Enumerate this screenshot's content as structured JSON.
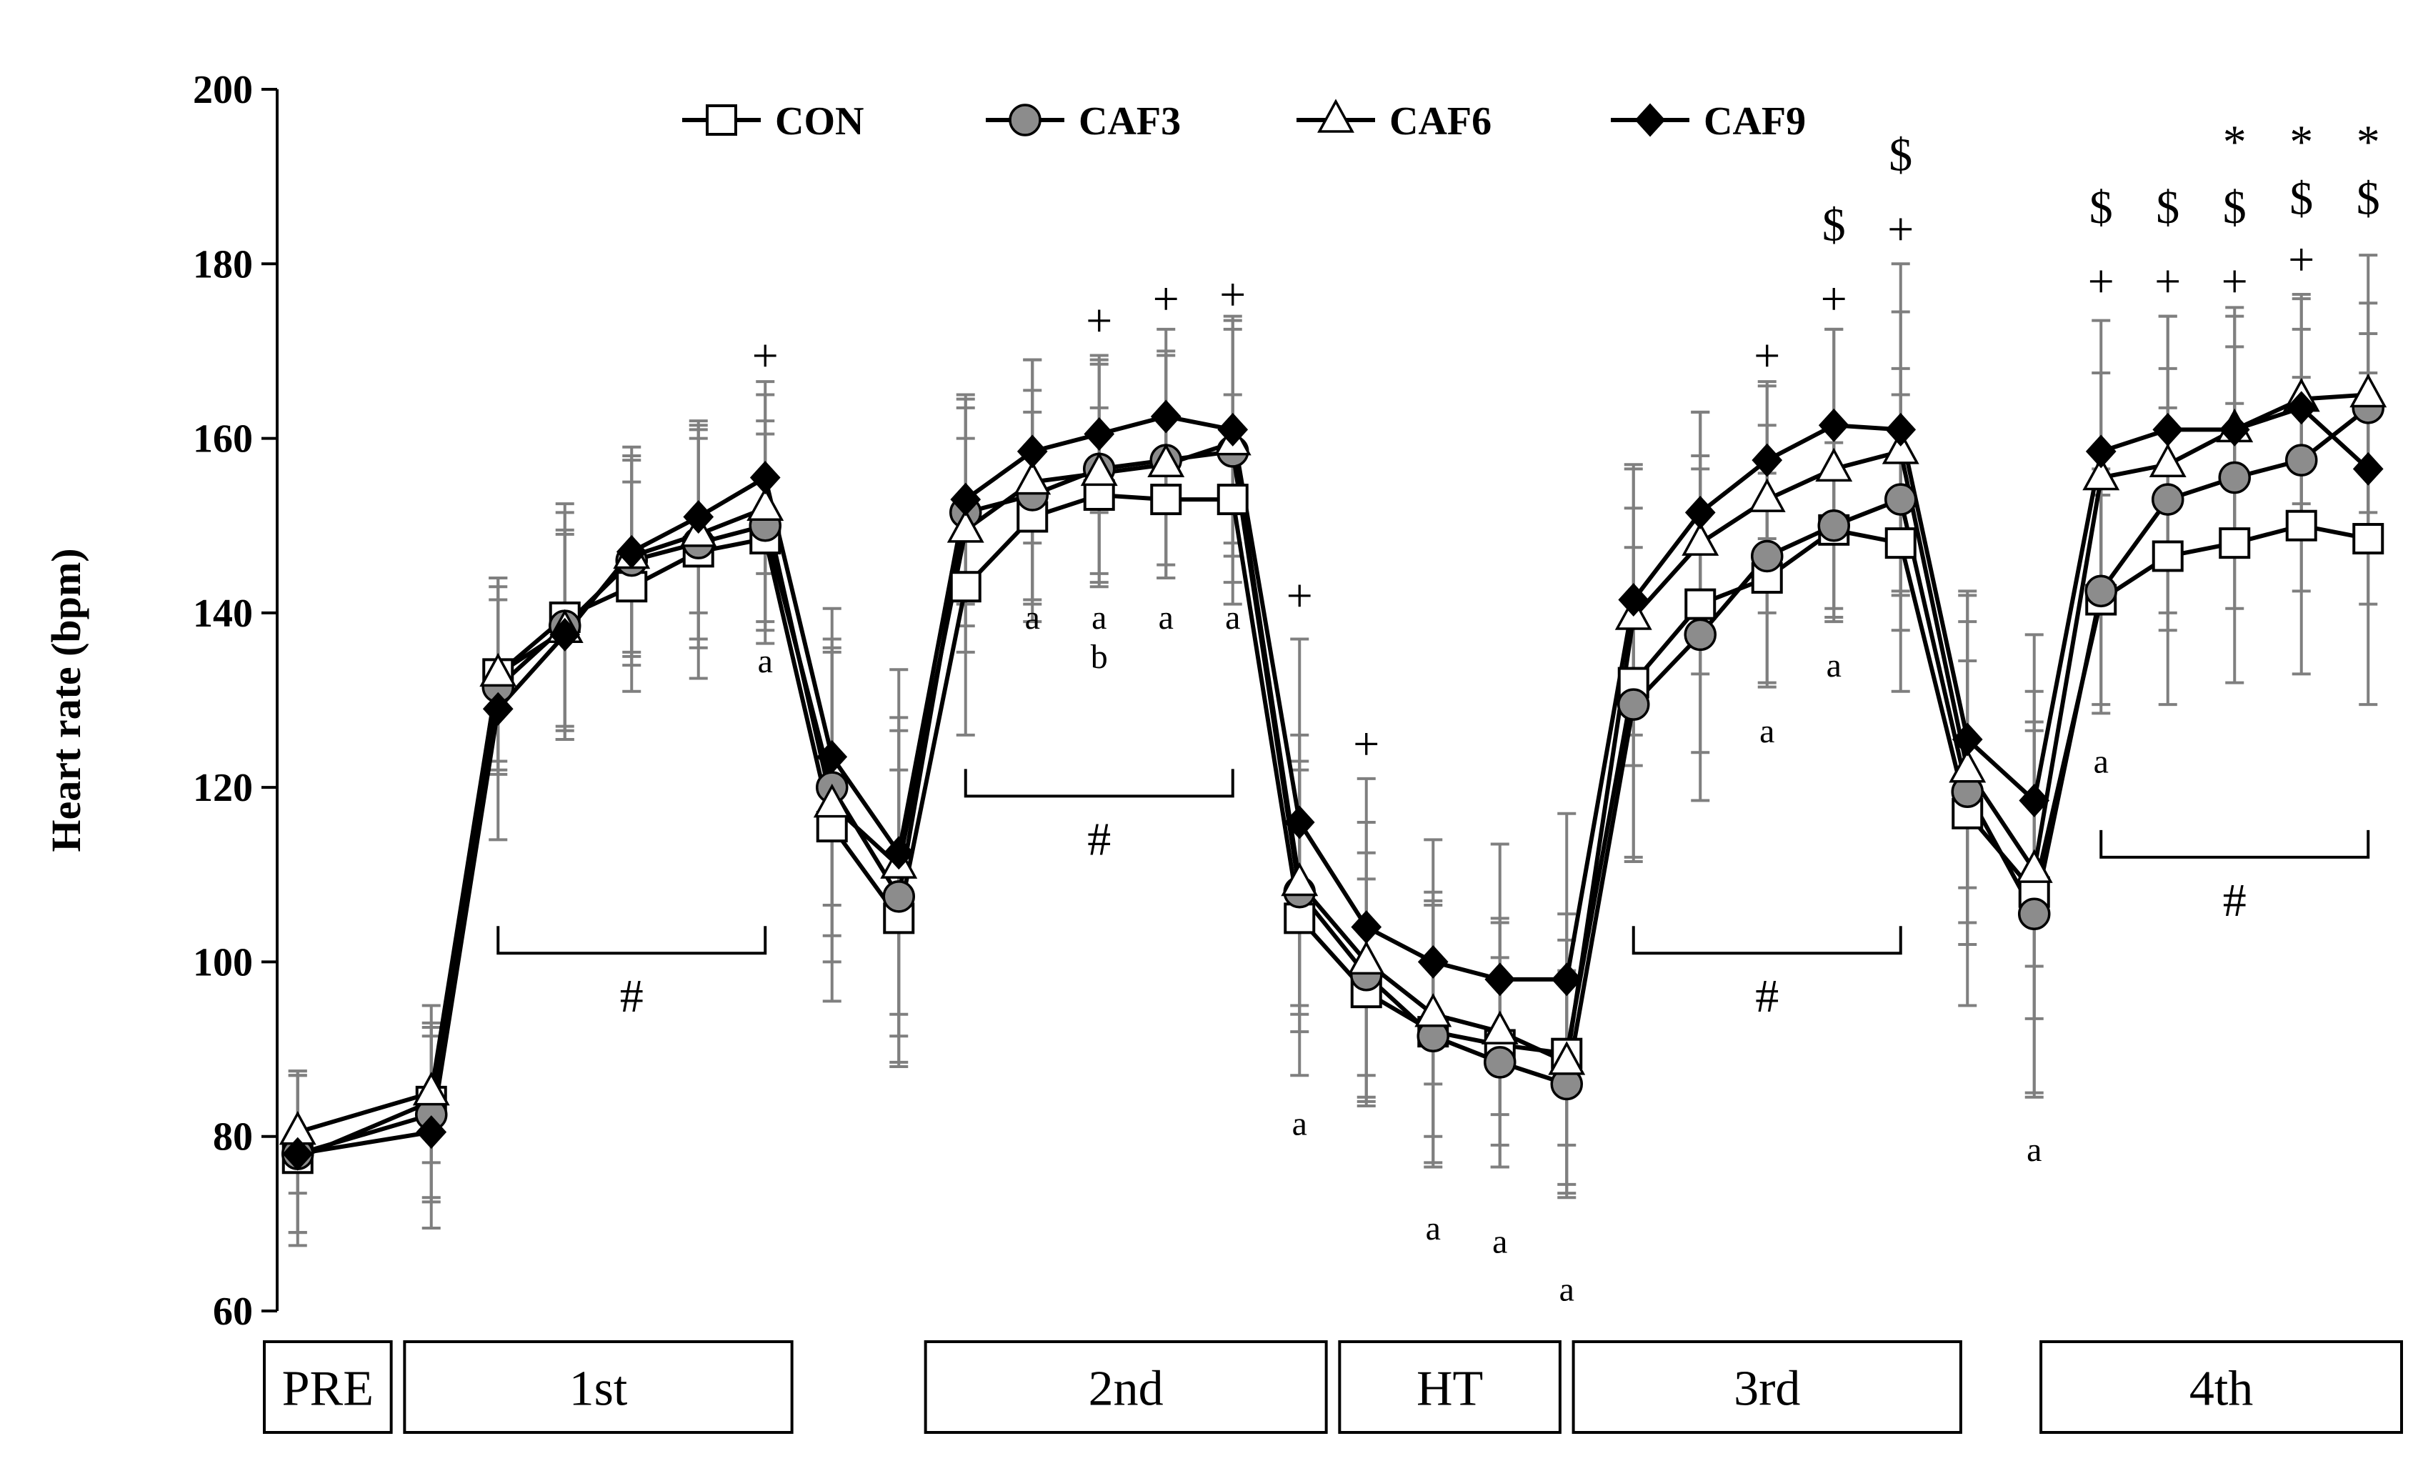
{
  "chart_data": {
    "type": "line",
    "title": "",
    "xlabel": "",
    "ylabel": "Heart rate (bpm)",
    "ylim": [
      60,
      200
    ],
    "yticks": [
      60,
      80,
      100,
      120,
      140,
      160,
      180,
      200
    ],
    "grid": false,
    "legend_position": "top",
    "phases": [
      "PRE",
      "1st",
      "2nd",
      "HT",
      "3rd",
      "4th"
    ],
    "series": [
      {
        "name": "CON",
        "marker": "square-open",
        "values": [
          {
            "x": 0.5,
            "y": 77.5,
            "err": 10
          },
          {
            "x": 2.5,
            "y": 84,
            "err": 11
          },
          {
            "x": 3.5,
            "y": 133,
            "err": 11
          },
          {
            "x": 4.5,
            "y": 139.5,
            "err": 13
          },
          {
            "x": 5.5,
            "y": 143,
            "err": 12
          },
          {
            "x": 6.5,
            "y": 147,
            "err": 14.5
          },
          {
            "x": 7.5,
            "y": 148.5,
            "err": 12
          },
          {
            "x": 8.5,
            "y": 115.5,
            "err": 20
          },
          {
            "x": 9.5,
            "y": 105,
            "err": 17
          },
          {
            "x": 10.5,
            "y": 143,
            "err": 17
          },
          {
            "x": 11.5,
            "y": 151,
            "err": 12
          },
          {
            "x": 12.5,
            "y": 153.5,
            "err": 10
          },
          {
            "x": 13.5,
            "y": 153,
            "err": 9
          },
          {
            "x": 14.5,
            "y": 153,
            "err": 12
          },
          {
            "x": 15.5,
            "y": 105,
            "err": 18
          },
          {
            "x": 16.5,
            "y": 96.5,
            "err": 13
          },
          {
            "x": 17.5,
            "y": 92,
            "err": 15
          },
          {
            "x": 18.5,
            "y": 90.5,
            "err": 14
          },
          {
            "x": 19.5,
            "y": 89.5,
            "err": 16
          },
          {
            "x": 20.5,
            "y": 132,
            "err": 20
          },
          {
            "x": 21.5,
            "y": 141,
            "err": 17
          },
          {
            "x": 22.5,
            "y": 144,
            "err": 12
          },
          {
            "x": 23.5,
            "y": 149.5,
            "err": 10
          },
          {
            "x": 24.5,
            "y": 148,
            "err": 17
          },
          {
            "x": 25.5,
            "y": 117,
            "err": 22
          },
          {
            "x": 26.5,
            "y": 108,
            "err": 23
          },
          {
            "x": 27.5,
            "y": 141.5,
            "err": 12
          },
          {
            "x": 28.5,
            "y": 146.5,
            "err": 17
          },
          {
            "x": 29.5,
            "y": 148,
            "err": 16
          },
          {
            "x": 30.5,
            "y": 150,
            "err": 17
          },
          {
            "x": 31.5,
            "y": 148.5,
            "err": 19
          }
        ]
      },
      {
        "name": "CAF3",
        "marker": "circle-gray",
        "values": [
          {
            "x": 0.5,
            "y": 78,
            "err": 9
          },
          {
            "x": 2.5,
            "y": 82.5,
            "err": 10
          },
          {
            "x": 3.5,
            "y": 131.5,
            "err": 10
          },
          {
            "x": 4.5,
            "y": 138.5,
            "err": 13
          },
          {
            "x": 5.5,
            "y": 146,
            "err": 12
          },
          {
            "x": 6.5,
            "y": 148,
            "err": 12
          },
          {
            "x": 7.5,
            "y": 150,
            "err": 12
          },
          {
            "x": 8.5,
            "y": 120,
            "err": 17
          },
          {
            "x": 9.5,
            "y": 107.5,
            "err": 19
          },
          {
            "x": 10.5,
            "y": 151.5,
            "err": 13
          },
          {
            "x": 11.5,
            "y": 153.5,
            "err": 12
          },
          {
            "x": 12.5,
            "y": 156.5,
            "err": 12
          },
          {
            "x": 13.5,
            "y": 157.5,
            "err": 12
          },
          {
            "x": 14.5,
            "y": 158.5,
            "err": 15
          },
          {
            "x": 15.5,
            "y": 108,
            "err": 14
          },
          {
            "x": 16.5,
            "y": 98.5,
            "err": 14
          },
          {
            "x": 17.5,
            "y": 91.5,
            "err": 15
          },
          {
            "x": 18.5,
            "y": 88.5,
            "err": 12
          },
          {
            "x": 19.5,
            "y": 86,
            "err": 13
          },
          {
            "x": 20.5,
            "y": 129.5,
            "err": 18
          },
          {
            "x": 21.5,
            "y": 137.5,
            "err": 19
          },
          {
            "x": 22.5,
            "y": 146.5,
            "err": 15
          },
          {
            "x": 23.5,
            "y": 150,
            "err": 11
          },
          {
            "x": 24.5,
            "y": 153,
            "err": 15
          },
          {
            "x": 25.5,
            "y": 119.5,
            "err": 15
          },
          {
            "x": 26.5,
            "y": 105.5,
            "err": 21
          },
          {
            "x": 27.5,
            "y": 142.5,
            "err": 14
          },
          {
            "x": 28.5,
            "y": 153,
            "err": 15
          },
          {
            "x": 29.5,
            "y": 155.5,
            "err": 15
          },
          {
            "x": 30.5,
            "y": 157.5,
            "err": 15
          },
          {
            "x": 31.5,
            "y": 163.5,
            "err": 12
          }
        ]
      },
      {
        "name": "CAF6",
        "marker": "triangle-open",
        "values": [
          {
            "x": 0.5,
            "y": 80.5,
            "err": 7
          },
          {
            "x": 2.5,
            "y": 85,
            "err": 8
          },
          {
            "x": 3.5,
            "y": 133,
            "err": 10
          },
          {
            "x": 4.5,
            "y": 138,
            "err": 11
          },
          {
            "x": 5.5,
            "y": 146.5,
            "err": 11
          },
          {
            "x": 6.5,
            "y": 149,
            "err": 12
          },
          {
            "x": 7.5,
            "y": 152,
            "err": 13
          },
          {
            "x": 8.5,
            "y": 118,
            "err": 18
          },
          {
            "x": 9.5,
            "y": 111,
            "err": 17
          },
          {
            "x": 10.5,
            "y": 149.5,
            "err": 14
          },
          {
            "x": 11.5,
            "y": 155,
            "err": 14
          },
          {
            "x": 12.5,
            "y": 156,
            "err": 13
          },
          {
            "x": 13.5,
            "y": 157,
            "err": 13
          },
          {
            "x": 14.5,
            "y": 159.5,
            "err": 13
          },
          {
            "x": 15.5,
            "y": 109,
            "err": 17
          },
          {
            "x": 16.5,
            "y": 100,
            "err": 16
          },
          {
            "x": 17.5,
            "y": 94,
            "err": 14
          },
          {
            "x": 18.5,
            "y": 92,
            "err": 13
          },
          {
            "x": 19.5,
            "y": 88.5,
            "err": 14
          },
          {
            "x": 20.5,
            "y": 139.5,
            "err": 17
          },
          {
            "x": 21.5,
            "y": 148,
            "err": 15
          },
          {
            "x": 22.5,
            "y": 153,
            "err": 13
          },
          {
            "x": 23.5,
            "y": 156.5,
            "err": 16
          },
          {
            "x": 24.5,
            "y": 158.5,
            "err": 16
          },
          {
            "x": 25.5,
            "y": 122,
            "err": 20
          },
          {
            "x": 26.5,
            "y": 110.5,
            "err": 17
          },
          {
            "x": 27.5,
            "y": 155.5,
            "err": 12
          },
          {
            "x": 28.5,
            "y": 157,
            "err": 17
          },
          {
            "x": 29.5,
            "y": 161,
            "err": 14
          },
          {
            "x": 30.5,
            "y": 164.5,
            "err": 12
          },
          {
            "x": 31.5,
            "y": 165,
            "err": 16
          }
        ]
      },
      {
        "name": "CAF9",
        "marker": "diamond-filled",
        "values": [
          {
            "x": 0.5,
            "y": 78,
            "err": 9
          },
          {
            "x": 2.5,
            "y": 80.5,
            "err": 11
          },
          {
            "x": 3.5,
            "y": 129,
            "err": 15
          },
          {
            "x": 4.5,
            "y": 137.5,
            "err": 12
          },
          {
            "x": 5.5,
            "y": 147,
            "err": 12
          },
          {
            "x": 6.5,
            "y": 151,
            "err": 11
          },
          {
            "x": 7.5,
            "y": 155.5,
            "err": 11
          },
          {
            "x": 8.5,
            "y": 123.5,
            "err": 17
          },
          {
            "x": 9.5,
            "y": 112.5,
            "err": 21
          },
          {
            "x": 10.5,
            "y": 153,
            "err": 12
          },
          {
            "x": 11.5,
            "y": 158.5,
            "err": 10.5
          },
          {
            "x": 12.5,
            "y": 160.5,
            "err": 9
          },
          {
            "x": 13.5,
            "y": 162.5,
            "err": 10
          },
          {
            "x": 14.5,
            "y": 161,
            "err": 13
          },
          {
            "x": 15.5,
            "y": 116,
            "err": 21
          },
          {
            "x": 16.5,
            "y": 104,
            "err": 17
          },
          {
            "x": 17.5,
            "y": 100,
            "err": 14
          },
          {
            "x": 18.5,
            "y": 98,
            "err": 15.5
          },
          {
            "x": 19.5,
            "y": 98,
            "err": 19
          },
          {
            "x": 20.5,
            "y": 141.5,
            "err": 15.5
          },
          {
            "x": 21.5,
            "y": 151.5,
            "err": 11.5
          },
          {
            "x": 22.5,
            "y": 157.5,
            "err": 9
          },
          {
            "x": 23.5,
            "y": 161.5,
            "err": 11
          },
          {
            "x": 24.5,
            "y": 161,
            "err": 19
          },
          {
            "x": 25.5,
            "y": 125.5,
            "err": 17
          },
          {
            "x": 26.5,
            "y": 118.5,
            "err": 19
          },
          {
            "x": 27.5,
            "y": 158.5,
            "err": 15
          },
          {
            "x": 28.5,
            "y": 161,
            "err": 13
          },
          {
            "x": 29.5,
            "y": 161,
            "err": 13
          },
          {
            "x": 30.5,
            "y": 163.5,
            "err": 12.5
          },
          {
            "x": 31.5,
            "y": 156.5,
            "err": 15.5
          }
        ]
      }
    ],
    "annotations": [
      {
        "x": 7.5,
        "y": 134.5,
        "text": "a",
        "kind": "letter"
      },
      {
        "x": 11.5,
        "y": 139.5,
        "text": "a",
        "kind": "letter"
      },
      {
        "x": 12.5,
        "y": 139.5,
        "text": "a",
        "kind": "letter"
      },
      {
        "x": 12.5,
        "y": 135,
        "text": "b",
        "kind": "letter"
      },
      {
        "x": 13.5,
        "y": 139.5,
        "text": "a",
        "kind": "letter"
      },
      {
        "x": 14.5,
        "y": 139.5,
        "text": "a",
        "kind": "letter"
      },
      {
        "x": 15.5,
        "y": 81.5,
        "text": "a",
        "kind": "letter"
      },
      {
        "x": 17.5,
        "y": 69.5,
        "text": "a",
        "kind": "letter"
      },
      {
        "x": 18.5,
        "y": 68,
        "text": "a",
        "kind": "letter"
      },
      {
        "x": 19.5,
        "y": 62.5,
        "text": "a",
        "kind": "letter"
      },
      {
        "x": 22.5,
        "y": 126.5,
        "text": "a",
        "kind": "letter"
      },
      {
        "x": 23.5,
        "y": 134,
        "text": "a",
        "kind": "letter"
      },
      {
        "x": 26.5,
        "y": 78.5,
        "text": "a",
        "kind": "letter"
      },
      {
        "x": 27.5,
        "y": 123,
        "text": "a",
        "kind": "letter"
      },
      {
        "x": 7.5,
        "y": 169.5,
        "text": "+",
        "kind": "symbol"
      },
      {
        "x": 12.5,
        "y": 173.5,
        "text": "+",
        "kind": "symbol"
      },
      {
        "x": 13.5,
        "y": 176,
        "text": "+",
        "kind": "symbol"
      },
      {
        "x": 14.5,
        "y": 176.5,
        "text": "+",
        "kind": "symbol"
      },
      {
        "x": 15.5,
        "y": 142,
        "text": "+",
        "kind": "symbol"
      },
      {
        "x": 16.5,
        "y": 125,
        "text": "+",
        "kind": "symbol"
      },
      {
        "x": 22.5,
        "y": 169.5,
        "text": "+",
        "kind": "symbol"
      },
      {
        "x": 23.5,
        "y": 176,
        "text": "+",
        "kind": "symbol"
      },
      {
        "x": 24.5,
        "y": 184,
        "text": "+",
        "kind": "symbol"
      },
      {
        "x": 27.5,
        "y": 178,
        "text": "+",
        "kind": "symbol"
      },
      {
        "x": 28.5,
        "y": 178,
        "text": "+",
        "kind": "symbol"
      },
      {
        "x": 29.5,
        "y": 178,
        "text": "+",
        "kind": "symbol"
      },
      {
        "x": 30.5,
        "y": 180.5,
        "text": "+",
        "kind": "symbol"
      },
      {
        "x": 23.5,
        "y": 184.5,
        "text": "$",
        "kind": "symbol"
      },
      {
        "x": 24.5,
        "y": 192.5,
        "text": "$",
        "kind": "symbol"
      },
      {
        "x": 27.5,
        "y": 186.5,
        "text": "$",
        "kind": "symbol"
      },
      {
        "x": 28.5,
        "y": 186.5,
        "text": "$",
        "kind": "symbol"
      },
      {
        "x": 29.5,
        "y": 186.5,
        "text": "$",
        "kind": "symbol"
      },
      {
        "x": 30.5,
        "y": 187.5,
        "text": "$",
        "kind": "symbol"
      },
      {
        "x": 31.5,
        "y": 187.5,
        "text": "$",
        "kind": "symbol"
      },
      {
        "x": 29.5,
        "y": 194,
        "text": "*",
        "kind": "symbol"
      },
      {
        "x": 30.5,
        "y": 194,
        "text": "*",
        "kind": "symbol"
      },
      {
        "x": 31.5,
        "y": 194,
        "text": "*",
        "kind": "symbol"
      }
    ],
    "brackets": [
      {
        "x_start": 3.5,
        "x_end": 7.5,
        "y": 101,
        "text": "#"
      },
      {
        "x_start": 10.5,
        "x_end": 14.5,
        "y": 119,
        "text": "#"
      },
      {
        "x_start": 20.5,
        "x_end": 24.5,
        "y": 101,
        "text": "#"
      },
      {
        "x_start": 27.5,
        "x_end": 31.5,
        "y": 112,
        "text": "#"
      }
    ],
    "phase_boxes": [
      {
        "label": "PRE",
        "x_start": 0,
        "x_end": 1.9
      },
      {
        "label": "1st",
        "x_start": 2.1,
        "x_end": 7.9
      },
      {
        "label": "2nd",
        "x_start": 9.9,
        "x_end": 15.9
      },
      {
        "label": "HT",
        "x_start": 16.1,
        "x_end": 19.4
      },
      {
        "label": "3rd",
        "x_start": 19.6,
        "x_end": 25.4
      },
      {
        "label": "4th",
        "x_start": 26.6,
        "x_end": 32.0
      }
    ]
  }
}
